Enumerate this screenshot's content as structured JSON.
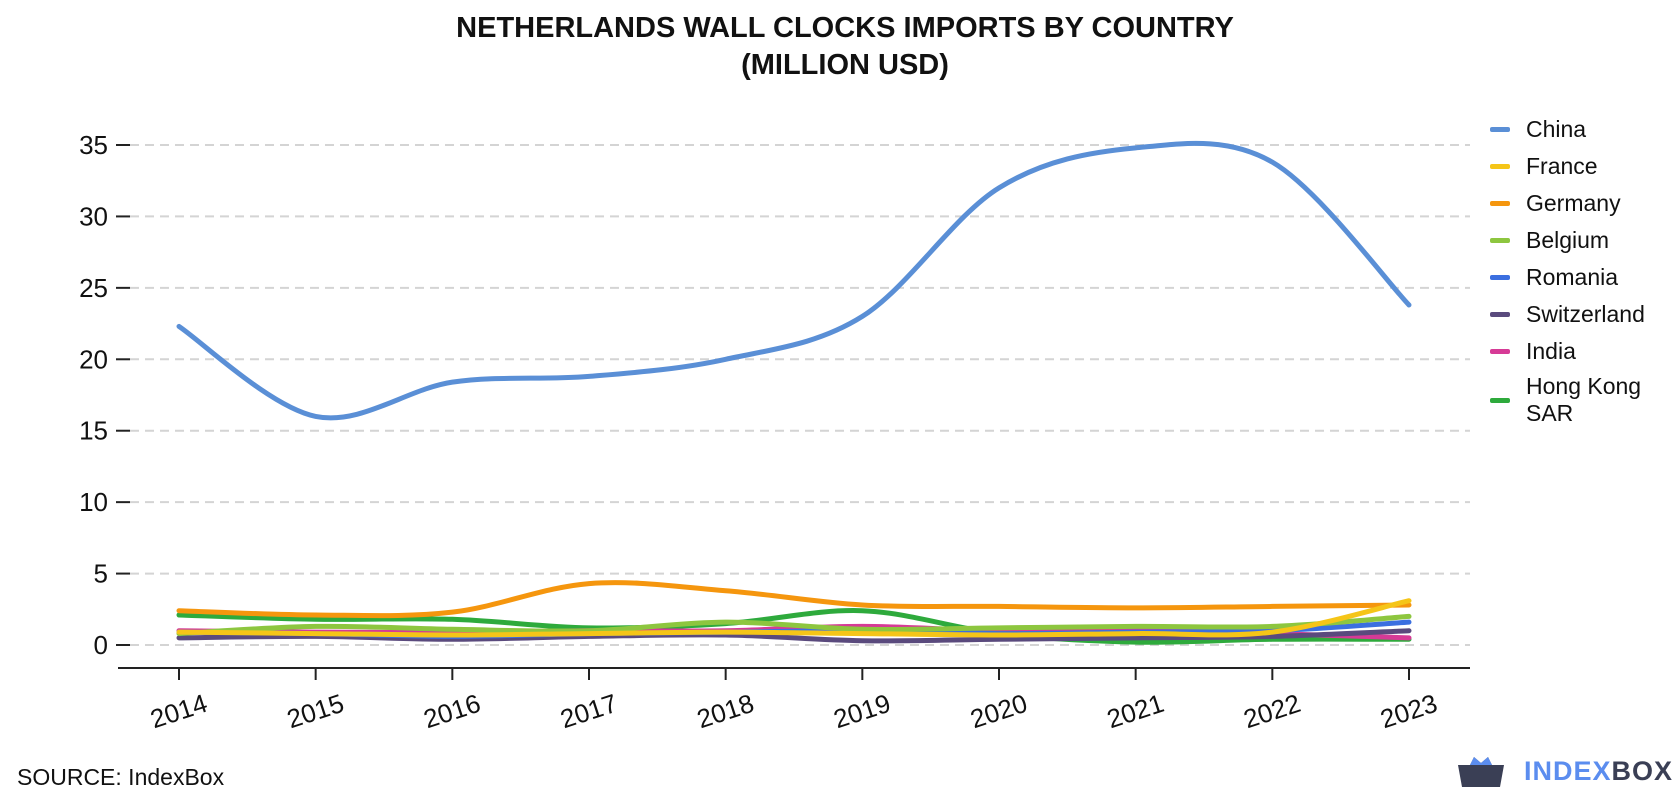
{
  "title": {
    "line1": "NETHERLANDS WALL CLOCKS IMPORTS BY COUNTRY",
    "line2": "(MILLION USD)"
  },
  "source": "SOURCE: IndexBox",
  "brand": {
    "part1": "INDEX",
    "part2": "BOX",
    "icon": "indexbox-logo-icon"
  },
  "chart_data": {
    "type": "line",
    "x": [
      "2014",
      "2015",
      "2016",
      "2017",
      "2018",
      "2019",
      "2020",
      "2021",
      "2022",
      "2023"
    ],
    "ylim": [
      0,
      35
    ],
    "yticks": [
      0,
      5,
      10,
      15,
      20,
      25,
      30,
      35
    ],
    "grid": true,
    "legend_position": "right",
    "series": [
      {
        "name": "China",
        "color": "#5a8fd6",
        "values": [
          22.3,
          16.0,
          18.4,
          18.8,
          20.0,
          23.0,
          32.0,
          34.8,
          33.8,
          23.8
        ]
      },
      {
        "name": "France",
        "color": "#f5c518",
        "values": [
          0.9,
          0.8,
          0.7,
          0.8,
          0.9,
          0.8,
          0.7,
          0.8,
          0.9,
          3.1
        ]
      },
      {
        "name": "Germany",
        "color": "#f5960e",
        "values": [
          2.4,
          2.1,
          2.3,
          4.3,
          3.8,
          2.8,
          2.7,
          2.6,
          2.7,
          2.8
        ]
      },
      {
        "name": "Belgium",
        "color": "#8dc63f",
        "values": [
          0.8,
          1.3,
          1.1,
          1.0,
          1.6,
          1.1,
          1.2,
          1.3,
          1.3,
          2.0
        ]
      },
      {
        "name": "Romania",
        "color": "#3b6fe0",
        "values": [
          0.9,
          0.8,
          0.6,
          0.8,
          0.9,
          1.0,
          0.8,
          0.9,
          1.0,
          1.6
        ]
      },
      {
        "name": "Switzerland",
        "color": "#5a4a7d",
        "values": [
          0.5,
          0.6,
          0.4,
          0.6,
          0.7,
          0.3,
          0.4,
          0.5,
          0.6,
          1.0
        ]
      },
      {
        "name": "India",
        "color": "#d63a96",
        "values": [
          1.0,
          0.9,
          0.9,
          1.0,
          1.0,
          1.3,
          1.0,
          1.1,
          0.8,
          0.5
        ]
      },
      {
        "name": "Hong Kong SAR",
        "color": "#2eaa3c",
        "values": [
          2.1,
          1.8,
          1.8,
          1.2,
          1.5,
          2.4,
          0.8,
          0.2,
          0.4,
          0.4
        ]
      }
    ]
  }
}
